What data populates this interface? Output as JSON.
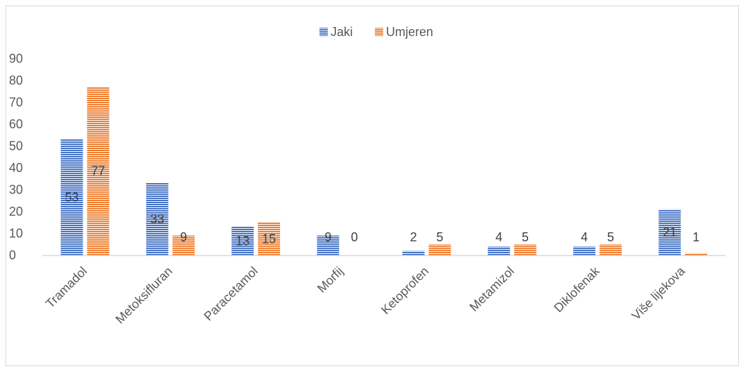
{
  "chart_data": {
    "type": "bar",
    "title": "",
    "xlabel": "",
    "ylabel": "",
    "categories": [
      "Tramadol",
      "Metoksifluran",
      "Paracetamol",
      "Morfij",
      "Ketoprofen",
      "Metamizol",
      "Diklofenak",
      "Više lijekova"
    ],
    "series": [
      {
        "name": "Jaki",
        "values": [
          53,
          33,
          13,
          9,
          2,
          4,
          4,
          21
        ],
        "color": "#4472c4"
      },
      {
        "name": "Umjeren",
        "values": [
          77,
          9,
          15,
          0,
          5,
          5,
          5,
          1
        ],
        "color": "#ed7d31"
      }
    ],
    "ylim": [
      0,
      90
    ],
    "yticks": [
      0,
      10,
      20,
      30,
      40,
      50,
      60,
      70,
      80,
      90
    ],
    "grid": false,
    "legend_position": "top",
    "bar_fill_pattern": "horizontal-stripes",
    "data_labels": true
  }
}
